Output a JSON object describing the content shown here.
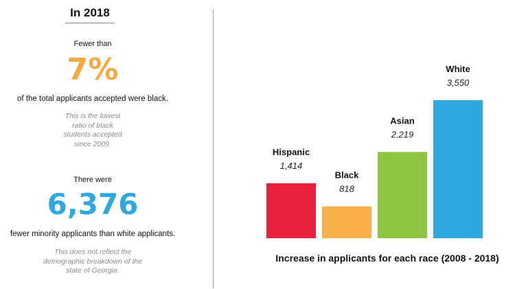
{
  "left_panel": {
    "heading": "In 2018",
    "stat1": {
      "prefix": "Fewer than",
      "value": "7%",
      "sentence": "of the total applicants accepted were black.",
      "note_lines": [
        "This is the lowest",
        "ratio of black",
        "students accepted",
        "since 2009."
      ]
    },
    "stat2": {
      "prefix": "There were",
      "value": "6,376",
      "sentence": "fewer minority applicants than white applicants.",
      "note_lines": [
        "This does not reflect the",
        "demographic breakdown of the",
        "state of Georgia."
      ]
    }
  },
  "chart_data": {
    "type": "bar",
    "title": "Increase in applicants for each race  (2008 - 2018)",
    "categories": [
      "Hispanic",
      "Black",
      "Asian",
      "White"
    ],
    "values": [
      1414,
      818,
      2219,
      3550
    ],
    "value_labels": [
      "1,414",
      "818",
      "2.219",
      "3,550"
    ],
    "colors": [
      "#e8213f",
      "#f8b04a",
      "#8dc641",
      "#2fa8e0"
    ],
    "ylim": [
      0,
      3550
    ],
    "grid": false,
    "legend": "none"
  }
}
